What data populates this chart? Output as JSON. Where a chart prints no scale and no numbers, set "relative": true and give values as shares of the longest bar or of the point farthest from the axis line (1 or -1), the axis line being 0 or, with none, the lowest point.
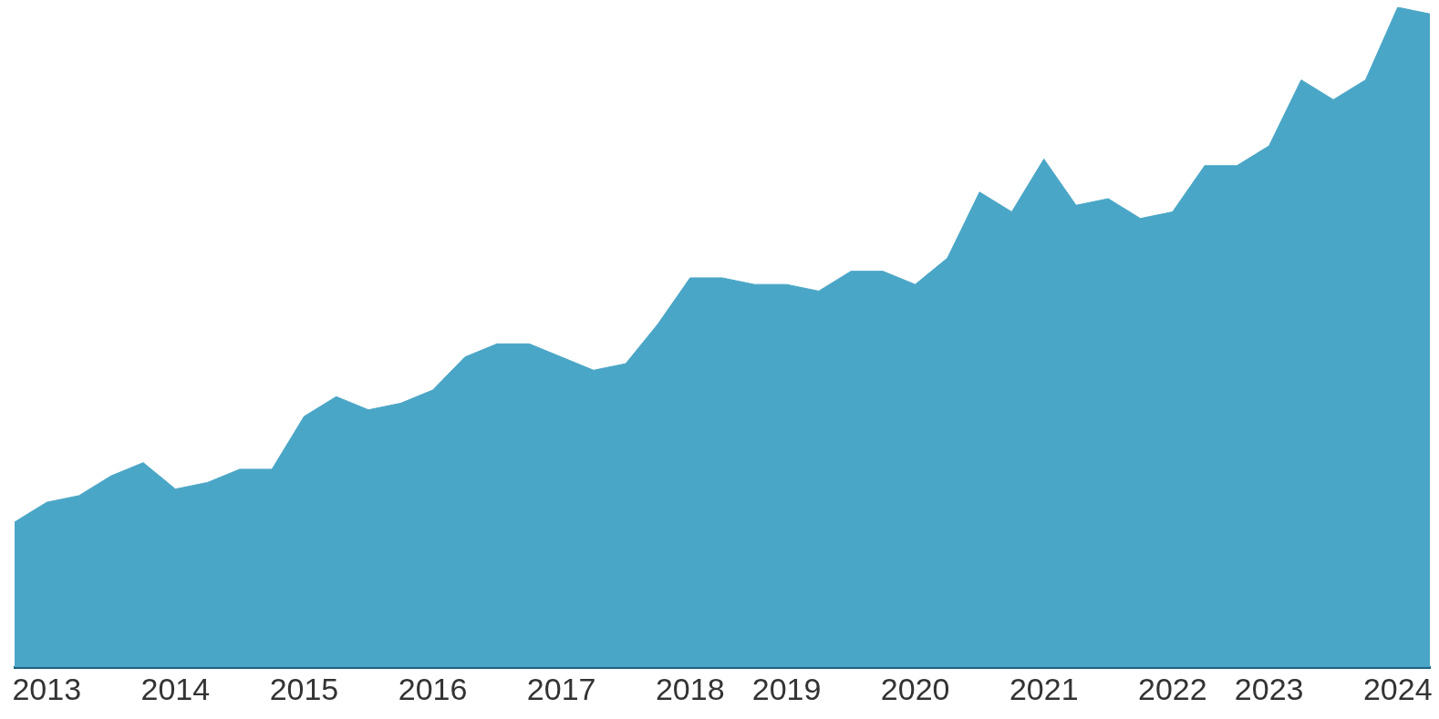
{
  "chart_data": {
    "type": "area",
    "relative": true,
    "categories": [
      null,
      "2013",
      null,
      null,
      null,
      "2014",
      null,
      null,
      null,
      "2015",
      null,
      null,
      null,
      "2016",
      null,
      null,
      null,
      "2017",
      null,
      null,
      null,
      "2018",
      null,
      null,
      "2019",
      null,
      null,
      null,
      "2020",
      null,
      null,
      null,
      "2021",
      null,
      null,
      null,
      "2022",
      null,
      null,
      "2023",
      null,
      null,
      null,
      "2024",
      null
    ],
    "series": [
      {
        "color": "#4aa6c6",
        "values": [
          0.22,
          0.25,
          0.26,
          0.29,
          0.31,
          0.27,
          0.28,
          0.3,
          0.3,
          0.38,
          0.41,
          0.39,
          0.4,
          0.42,
          0.47,
          0.49,
          0.49,
          0.47,
          0.45,
          0.46,
          0.52,
          0.59,
          0.59,
          0.58,
          0.58,
          0.57,
          0.6,
          0.6,
          0.58,
          0.62,
          0.72,
          0.69,
          0.77,
          0.7,
          0.71,
          0.68,
          0.69,
          0.76,
          0.76,
          0.79,
          0.89,
          0.86,
          0.89,
          1,
          0.99
        ]
      }
    ],
    "grid": false,
    "legend": false
  }
}
